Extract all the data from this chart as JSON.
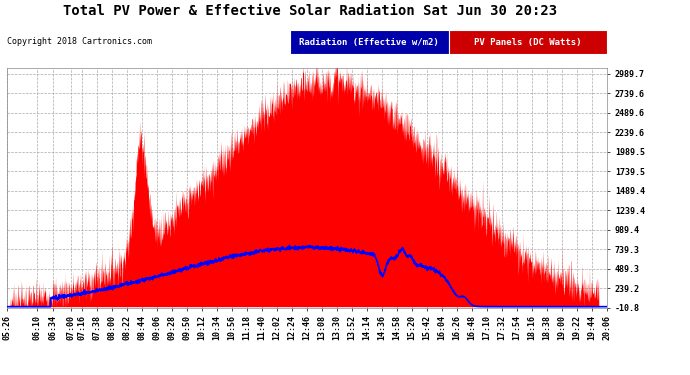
{
  "title": "Total PV Power & Effective Solar Radiation Sat Jun 30 20:23",
  "copyright": "Copyright 2018 Cartronics.com",
  "legend_radiation": "Radiation (Effective w/m2)",
  "legend_pv": "PV Panels (DC Watts)",
  "ylim_min": -10.8,
  "ylim_max": 2989.7,
  "yticks": [
    2989.7,
    2739.6,
    2489.6,
    2239.6,
    1989.5,
    1739.5,
    1489.4,
    1239.4,
    989.4,
    739.3,
    489.3,
    239.2,
    -10.8
  ],
  "bg_color": "#ffffff",
  "plot_bg_color": "#ffffff",
  "grid_color": "#cccccc",
  "title_color": "#000000",
  "radiation_color": "#0000ff",
  "pv_color": "#ff0000",
  "xtick_labels": [
    "05:26",
    "06:10",
    "06:34",
    "07:00",
    "07:16",
    "07:38",
    "08:00",
    "08:22",
    "08:44",
    "09:06",
    "09:28",
    "09:50",
    "10:12",
    "10:34",
    "10:56",
    "11:18",
    "11:40",
    "12:02",
    "12:24",
    "12:46",
    "13:08",
    "13:30",
    "13:52",
    "14:14",
    "14:36",
    "14:58",
    "15:20",
    "15:42",
    "16:04",
    "16:26",
    "16:48",
    "17:10",
    "17:32",
    "17:54",
    "18:16",
    "18:38",
    "19:00",
    "19:22",
    "19:44",
    "20:06"
  ]
}
